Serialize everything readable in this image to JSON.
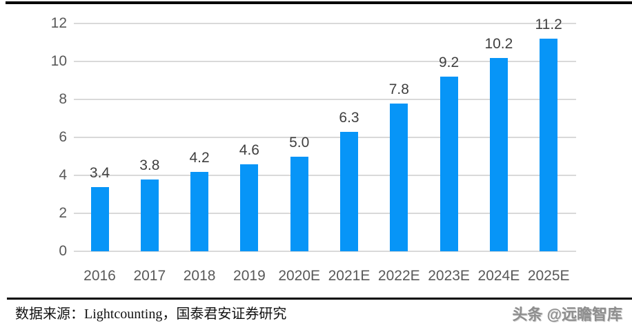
{
  "chart_data": {
    "type": "bar",
    "title": "",
    "xlabel": "",
    "ylabel": "",
    "categories": [
      "2016",
      "2017",
      "2018",
      "2019",
      "2020E",
      "2021E",
      "2022E",
      "2023E",
      "2024E",
      "2025E"
    ],
    "values": [
      3.4,
      3.8,
      4.2,
      4.6,
      5.0,
      6.3,
      7.8,
      9.2,
      10.2,
      11.2
    ],
    "value_labels": [
      "3.4",
      "3.8",
      "4.2",
      "4.6",
      "5.0",
      "6.3",
      "7.8",
      "9.2",
      "10.2",
      "11.2"
    ],
    "y_ticks": [
      0,
      2,
      4,
      6,
      8,
      10,
      12
    ],
    "ylim": [
      0,
      12
    ],
    "grid": true,
    "legend_position": "none",
    "bar_color": "#0795F7",
    "gridline_color": "#D9D9D9",
    "axis_label_color": "#595959",
    "value_label_color": "#3F3F3F"
  },
  "footer": {
    "source": "数据来源：Lightcounting，国泰君安证券研究",
    "watermark": "头条 @远瞻智库"
  }
}
